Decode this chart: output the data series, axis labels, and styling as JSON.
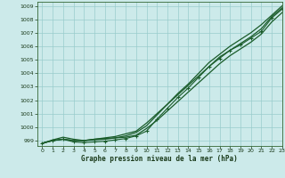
{
  "xlabel": "Graphe pression niveau de la mer (hPa)",
  "background_color": "#cceaea",
  "plot_bg_color": "#cceaea",
  "grid_color": "#99cccc",
  "line_color": "#1a5c2a",
  "xlim": [
    -0.5,
    23
  ],
  "ylim": [
    998.6,
    1009.3
  ],
  "yticks": [
    999,
    1000,
    1001,
    1002,
    1003,
    1004,
    1005,
    1006,
    1007,
    1008,
    1009
  ],
  "xticks": [
    0,
    1,
    2,
    3,
    4,
    5,
    6,
    7,
    8,
    9,
    10,
    11,
    12,
    13,
    14,
    15,
    16,
    17,
    18,
    19,
    20,
    21,
    22,
    23
  ],
  "series": [
    {
      "y": [
        998.8,
        999.0,
        999.1,
        999.0,
        999.0,
        999.1,
        999.15,
        999.2,
        999.25,
        999.4,
        999.9,
        1000.5,
        1001.2,
        1001.9,
        1002.6,
        1003.3,
        1004.0,
        1004.7,
        1005.3,
        1005.8,
        1006.3,
        1006.9,
        1007.8,
        1008.5
      ],
      "marker": null,
      "lw": 0.9
    },
    {
      "y": [
        998.8,
        999.0,
        999.1,
        999.0,
        999.0,
        999.1,
        999.2,
        999.3,
        999.5,
        999.7,
        1000.3,
        1001.0,
        1001.7,
        1002.4,
        1003.1,
        1003.8,
        1004.5,
        1005.2,
        1005.7,
        1006.2,
        1006.7,
        1007.3,
        1008.2,
        1008.85
      ],
      "marker": null,
      "lw": 0.9
    },
    {
      "y": [
        998.8,
        999.05,
        999.25,
        999.1,
        999.0,
        999.05,
        999.1,
        999.2,
        999.35,
        999.6,
        1000.1,
        1000.9,
        1001.7,
        1002.5,
        1003.2,
        1004.0,
        1004.8,
        1005.4,
        1006.0,
        1006.5,
        1007.0,
        1007.6,
        1008.3,
        1009.0
      ],
      "marker": null,
      "lw": 0.9
    },
    {
      "y": [
        998.8,
        999.0,
        999.1,
        998.9,
        998.85,
        998.9,
        998.95,
        999.05,
        999.15,
        999.35,
        999.7,
        1000.6,
        1001.4,
        1002.2,
        1002.9,
        1003.7,
        1004.5,
        1005.1,
        1005.7,
        1006.1,
        1006.6,
        1007.1,
        1008.1,
        1008.75
      ],
      "marker": "+",
      "lw": 0.8
    }
  ]
}
